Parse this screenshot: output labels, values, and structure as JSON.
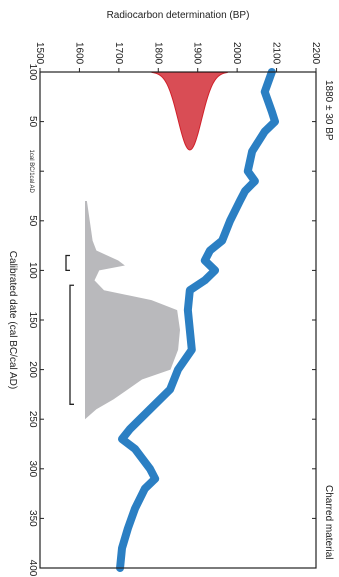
{
  "chart_data": {
    "type": "calibration",
    "x_label": "Radiocarbon determination (BP)",
    "y_label": "Calibrated date (cal BC/cal AD)",
    "sample": "Charred material",
    "measurement": {
      "label": "1880 ± 30 BP",
      "mean": 1880,
      "error": 30,
      "color": "#d0202a"
    },
    "xlim": [
      1500,
      2200
    ],
    "xticks": [
      1500,
      1600,
      1700,
      1800,
      1900,
      2000,
      2100,
      2200
    ],
    "ylim": [
      -100,
      400
    ],
    "yticks": [
      {
        "value": -100,
        "label": "100"
      },
      {
        "value": -50,
        "label": "50"
      },
      {
        "value": 0,
        "label": "1cal BC/1cal AD"
      },
      50,
      100,
      150,
      200,
      250,
      300,
      350,
      400
    ],
    "curve": {
      "color": "#2b7fc3",
      "dates": [
        -100,
        -80,
        -60,
        -50,
        -40,
        -20,
        0,
        10,
        20,
        30,
        50,
        70,
        80,
        90,
        100,
        110,
        120,
        140,
        160,
        180,
        200,
        220,
        240,
        260,
        270,
        280,
        300,
        310,
        320,
        340,
        360,
        380,
        400
      ],
      "values": [
        2088,
        2070,
        2088,
        2096,
        2070,
        2038,
        2027,
        2045,
        2020,
        2007,
        1982,
        1962,
        1931,
        1918,
        1944,
        1918,
        1880,
        1875,
        1880,
        1885,
        1850,
        1830,
        1779,
        1728,
        1708,
        1741,
        1779,
        1792,
        1766,
        1741,
        1723,
        1708,
        1703
      ]
    },
    "calibrated": {
      "color": "#b9b9bc",
      "dates": [
        30,
        50,
        70,
        80,
        90,
        95,
        100,
        110,
        120,
        130,
        140,
        160,
        180,
        200,
        210,
        220,
        230,
        240,
        250
      ],
      "values": [
        0.02,
        0.05,
        0.08,
        0.12,
        0.35,
        0.42,
        0.15,
        0.1,
        0.2,
        0.7,
        0.97,
        1.0,
        0.98,
        0.9,
        0.6,
        0.45,
        0.3,
        0.12,
        0
      ]
    },
    "ranges": [
      [
        85,
        100
      ],
      [
        115,
        235
      ]
    ]
  }
}
